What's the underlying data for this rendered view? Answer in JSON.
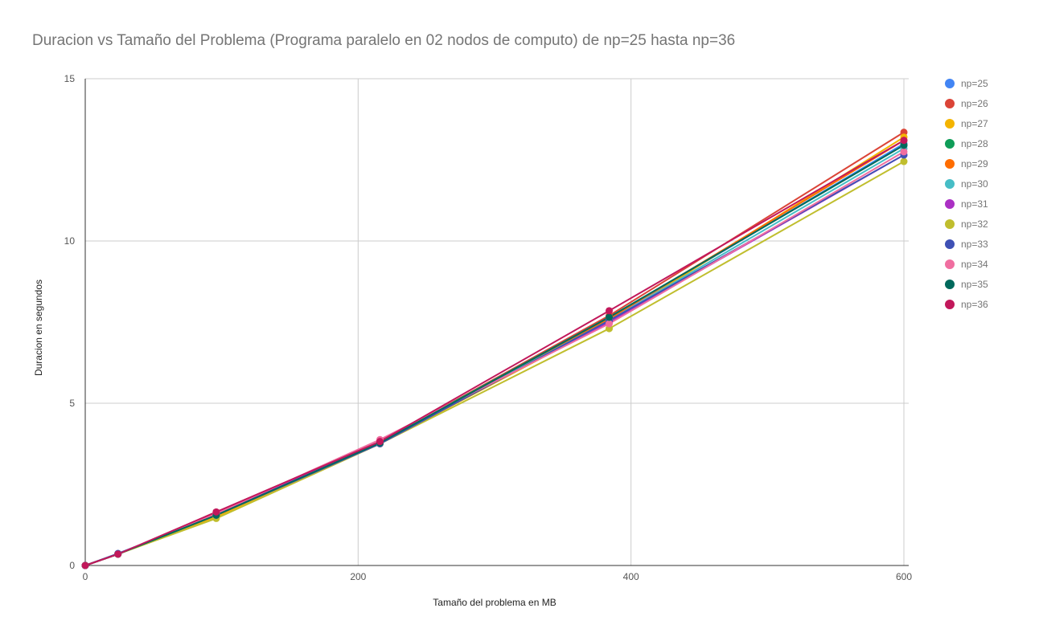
{
  "chart_data": {
    "type": "line",
    "title": "Duracion vs Tamaño del Problema (Programa paralelo en 02 nodos de computo) de np=25 hasta np=36",
    "xlabel": "Tamaño del problema en MB",
    "ylabel": "Duracion en segundos",
    "xlim": [
      0,
      600
    ],
    "ylim": [
      0,
      15
    ],
    "x_ticks": [
      "0",
      "200",
      "400",
      "600"
    ],
    "y_ticks": [
      "0",
      "5",
      "10",
      "15"
    ],
    "grid": true,
    "legend_position": "right",
    "x": [
      0,
      24,
      96,
      216,
      384,
      600
    ],
    "series": [
      {
        "name": "np=25",
        "color": "#4285f4",
        "values": [
          0,
          0.35,
          1.55,
          3.8,
          7.6,
          13.0
        ]
      },
      {
        "name": "np=26",
        "color": "#db4437",
        "values": [
          0,
          0.35,
          1.55,
          3.8,
          7.7,
          13.35
        ]
      },
      {
        "name": "np=27",
        "color": "#f4b400",
        "values": [
          0,
          0.35,
          1.5,
          3.75,
          7.5,
          13.2
        ]
      },
      {
        "name": "np=28",
        "color": "#0f9d58",
        "values": [
          0,
          0.35,
          1.55,
          3.8,
          7.65,
          12.95
        ]
      },
      {
        "name": "np=29",
        "color": "#ff6d00",
        "values": [
          0,
          0.35,
          1.55,
          3.8,
          7.6,
          13.1
        ]
      },
      {
        "name": "np=30",
        "color": "#46bdc6",
        "values": [
          0,
          0.35,
          1.55,
          3.8,
          7.55,
          12.85
        ]
      },
      {
        "name": "np=31",
        "color": "#ab30c4",
        "values": [
          0,
          0.35,
          1.6,
          3.8,
          7.5,
          12.65
        ]
      },
      {
        "name": "np=32",
        "color": "#c0be2e",
        "values": [
          0,
          0.35,
          1.45,
          3.75,
          7.3,
          12.45
        ]
      },
      {
        "name": "np=33",
        "color": "#3f51b5",
        "values": [
          0,
          0.37,
          1.55,
          3.75,
          7.55,
          12.65
        ]
      },
      {
        "name": "np=34",
        "color": "#f06ea0",
        "values": [
          0,
          0.35,
          1.6,
          3.88,
          7.45,
          12.75
        ]
      },
      {
        "name": "np=35",
        "color": "#00695c",
        "values": [
          0,
          0.35,
          1.55,
          3.78,
          7.65,
          12.95
        ]
      },
      {
        "name": "np=36",
        "color": "#c2185b",
        "values": [
          0,
          0.35,
          1.65,
          3.82,
          7.85,
          13.1
        ]
      }
    ]
  }
}
